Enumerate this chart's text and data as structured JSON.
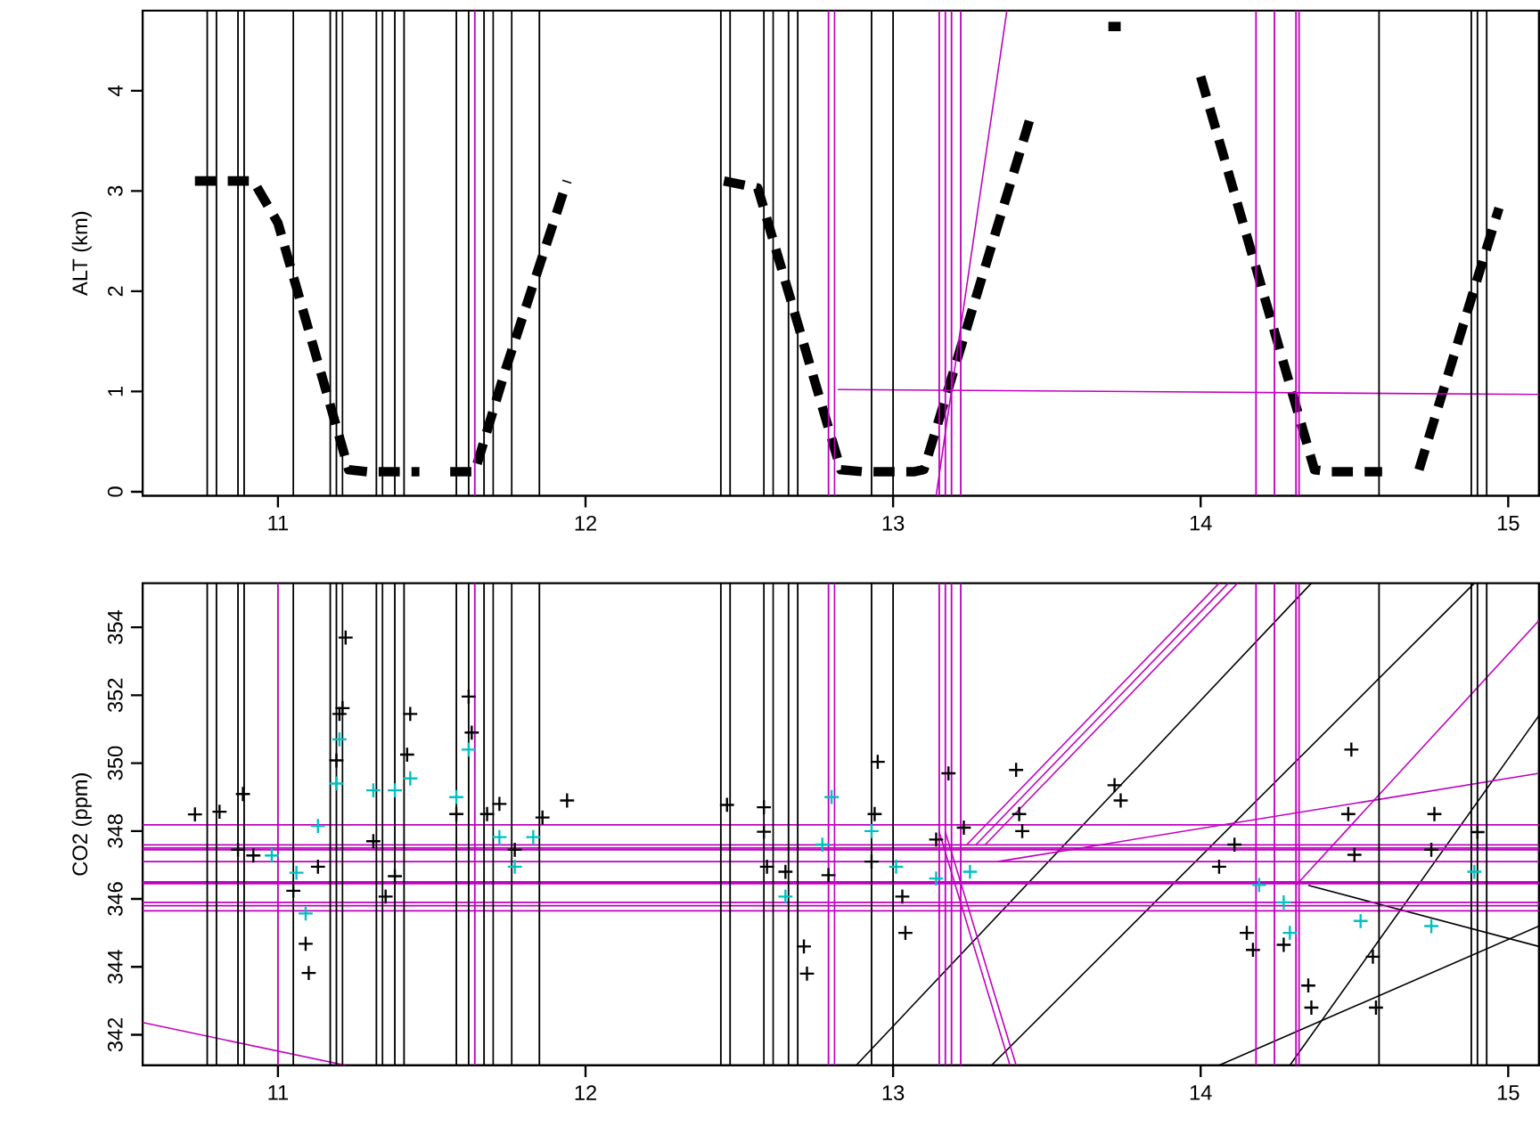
{
  "chart_data": [
    {
      "type": "line",
      "ylabel": "ALT (km)",
      "xlim": [
        10.56,
        15.1
      ],
      "ylim": [
        -0.04,
        4.8
      ],
      "xticks": [
        11,
        12,
        13,
        14,
        15
      ],
      "yticks": [
        0,
        1,
        2,
        3,
        4
      ],
      "series": [
        {
          "color": "#000000",
          "line_style": "dashed",
          "x": [
            10.73,
            10.92,
            11.0,
            11.23,
            11.29,
            11.46,
            11.5,
            11.56,
            11.64,
            11.74,
            11.94,
            12.2,
            12.45,
            12.56,
            12.83,
            12.9,
            13.07,
            13.1,
            13.45,
            13.6,
            13.7,
            13.74,
            13.85,
            14.0,
            14.37,
            14.42,
            14.59,
            14.65,
            14.71,
            14.97
          ],
          "values": [
            3.1,
            3.1,
            2.68,
            0.22,
            0.2,
            0.2,
            null,
            0.2,
            0.2,
            1.22,
            3.1,
            null,
            3.1,
            3.03,
            0.22,
            0.2,
            0.2,
            0.22,
            3.77,
            null,
            4.64,
            4.64,
            null,
            4.14,
            0.22,
            0.2,
            0.2,
            null,
            0.22,
            2.83
          ]
        },
        {
          "color": "#c000c0",
          "line_style": "solid",
          "x": [
            12.82,
            15.1
          ],
          "values": [
            1.02,
            0.97
          ]
        },
        {
          "color": "#c000c0",
          "line_style": "solid",
          "x": [
            13.14,
            13.37
          ],
          "values": [
            -0.04,
            4.8
          ]
        }
      ],
      "ref_lines": [
        {
          "axis": "x",
          "value": 10.77,
          "color": "#000000"
        },
        {
          "axis": "x",
          "value": 10.8,
          "color": "#000000"
        },
        {
          "axis": "x",
          "value": 10.87,
          "color": "#000000"
        },
        {
          "axis": "x",
          "value": 10.89,
          "color": "#000000"
        },
        {
          "axis": "x",
          "value": 11.05,
          "color": "#000000"
        },
        {
          "axis": "x",
          "value": 11.17,
          "color": "#000000"
        },
        {
          "axis": "x",
          "value": 11.19,
          "color": "#000000"
        },
        {
          "axis": "x",
          "value": 11.21,
          "color": "#000000"
        },
        {
          "axis": "x",
          "value": 11.32,
          "color": "#000000"
        },
        {
          "axis": "x",
          "value": 11.34,
          "color": "#000000"
        },
        {
          "axis": "x",
          "value": 11.38,
          "color": "#000000"
        },
        {
          "axis": "x",
          "value": 11.41,
          "color": "#000000"
        },
        {
          "axis": "x",
          "value": 11.58,
          "color": "#000000"
        },
        {
          "axis": "x",
          "value": 11.62,
          "color": "#000000"
        },
        {
          "axis": "x",
          "value": 11.67,
          "color": "#000000"
        },
        {
          "axis": "x",
          "value": 11.7,
          "color": "#000000"
        },
        {
          "axis": "x",
          "value": 11.76,
          "color": "#000000"
        },
        {
          "axis": "x",
          "value": 11.85,
          "color": "#000000"
        },
        {
          "axis": "x",
          "value": 12.44,
          "color": "#000000"
        },
        {
          "axis": "x",
          "value": 12.47,
          "color": "#000000"
        },
        {
          "axis": "x",
          "value": 12.58,
          "color": "#000000"
        },
        {
          "axis": "x",
          "value": 12.61,
          "color": "#000000"
        },
        {
          "axis": "x",
          "value": 12.66,
          "color": "#000000"
        },
        {
          "axis": "x",
          "value": 12.69,
          "color": "#000000"
        },
        {
          "axis": "x",
          "value": 12.93,
          "color": "#000000"
        },
        {
          "axis": "x",
          "value": 13.0,
          "color": "#000000"
        },
        {
          "axis": "x",
          "value": 14.58,
          "color": "#000000"
        },
        {
          "axis": "x",
          "value": 14.88,
          "color": "#000000"
        },
        {
          "axis": "x",
          "value": 14.9,
          "color": "#000000"
        },
        {
          "axis": "x",
          "value": 14.93,
          "color": "#000000"
        },
        {
          "axis": "x",
          "value": 11.64,
          "color": "#c000c0"
        },
        {
          "axis": "x",
          "value": 12.79,
          "color": "#c000c0"
        },
        {
          "axis": "x",
          "value": 12.81,
          "color": "#c000c0"
        },
        {
          "axis": "x",
          "value": 13.15,
          "color": "#c000c0"
        },
        {
          "axis": "x",
          "value": 13.17,
          "color": "#c000c0"
        },
        {
          "axis": "x",
          "value": 13.19,
          "color": "#c000c0"
        },
        {
          "axis": "x",
          "value": 13.22,
          "color": "#c000c0"
        },
        {
          "axis": "x",
          "value": 14.18,
          "color": "#c000c0"
        },
        {
          "axis": "x",
          "value": 14.24,
          "color": "#c000c0"
        },
        {
          "axis": "x",
          "value": 14.31,
          "color": "#c000c0"
        },
        {
          "axis": "x",
          "value": 14.32,
          "color": "#c000c0"
        }
      ]
    },
    {
      "type": "scatter",
      "ylabel": "CO2 (ppm)",
      "xlim": [
        10.56,
        15.1
      ],
      "ylim": [
        341.1,
        355.3
      ],
      "xticks": [
        11,
        12,
        13,
        14,
        15
      ],
      "yticks": [
        342,
        344,
        346,
        348,
        350,
        352,
        354
      ],
      "series": [
        {
          "color": "#000000",
          "marker": "cross",
          "x": [
            10.73,
            10.81,
            10.886,
            10.87,
            10.92,
            11.05,
            11.09,
            11.1,
            11.13,
            11.19,
            11.21,
            11.22,
            11.2,
            11.31,
            11.35,
            11.38,
            11.43,
            11.42,
            11.58,
            11.62,
            11.63,
            11.68,
            11.72,
            11.77,
            11.86,
            11.94,
            12.46,
            12.58,
            12.59,
            12.58,
            12.65,
            12.71,
            12.72,
            12.79,
            12.95,
            12.94,
            12.93,
            13.03,
            13.04,
            13.18,
            13.14,
            13.23,
            13.4,
            13.41,
            13.42,
            13.72,
            13.74,
            14.06,
            14.11,
            14.15,
            14.17,
            14.27,
            14.35,
            14.36,
            14.49,
            14.48,
            14.5,
            14.56,
            14.57,
            14.76,
            14.75,
            14.9
          ],
          "values": [
            348.49,
            348.57,
            349.09,
            347.45,
            347.28,
            346.24,
            344.68,
            343.82,
            346.95,
            350.08,
            351.62,
            353.7,
            351.45,
            347.7,
            346.07,
            346.67,
            351.45,
            350.25,
            348.5,
            351.96,
            350.9,
            348.5,
            348.8,
            347.45,
            348.4,
            348.9,
            348.77,
            348.7,
            346.95,
            347.98,
            346.8,
            344.6,
            343.8,
            346.7,
            350.04,
            348.5,
            347.1,
            346.07,
            345.0,
            349.7,
            347.75,
            348.1,
            349.8,
            348.5,
            348.0,
            349.35,
            348.9,
            346.95,
            347.6,
            345.0,
            344.5,
            344.65,
            343.45,
            342.8,
            350.4,
            348.5,
            347.3,
            344.3,
            342.8,
            348.5,
            347.45,
            347.97
          ]
        },
        {
          "color": "#00c0c0",
          "marker": "cross",
          "x": [
            10.98,
            11.06,
            11.09,
            11.13,
            11.19,
            11.2,
            11.31,
            11.38,
            11.43,
            11.58,
            11.62,
            11.72,
            11.77,
            11.83,
            12.65,
            12.8,
            12.77,
            12.93,
            13.01,
            13.14,
            13.25,
            14.19,
            14.27,
            14.29,
            14.52,
            14.75,
            14.89
          ],
          "values": [
            347.28,
            346.77,
            345.57,
            348.15,
            349.4,
            350.7,
            349.2,
            349.2,
            349.55,
            349.0,
            350.4,
            347.82,
            346.95,
            347.82,
            346.07,
            349.0,
            347.6,
            348.0,
            346.95,
            346.6,
            346.8,
            346.41,
            345.9,
            345.0,
            345.35,
            345.2,
            346.8
          ]
        },
        {
          "type": "line",
          "color": "#000000",
          "line_style": "solid",
          "x": [
            12.88,
            14.36
          ],
          "values": [
            341.1,
            355.3
          ]
        },
        {
          "type": "line",
          "color": "#000000",
          "line_style": "solid",
          "x": [
            13.32,
            14.89
          ],
          "values": [
            341.1,
            355.3
          ]
        },
        {
          "type": "line",
          "color": "#000000",
          "line_style": "solid",
          "x": [
            14.06,
            15.1
          ],
          "values": [
            341.1,
            345.2
          ]
        },
        {
          "type": "line",
          "color": "#000000",
          "line_style": "solid",
          "x": [
            14.29,
            15.1
          ],
          "values": [
            341.1,
            351.4
          ]
        },
        {
          "type": "line",
          "color": "#000000",
          "line_style": "solid",
          "x": [
            14.35,
            15.1
          ],
          "values": [
            346.4,
            344.6
          ]
        },
        {
          "type": "line",
          "color": "#c000c0",
          "line_style": "solid",
          "x": [
            13.24,
            14.06
          ],
          "values": [
            347.6,
            355.3
          ]
        },
        {
          "type": "line",
          "color": "#c000c0",
          "line_style": "solid",
          "x": [
            13.27,
            14.09
          ],
          "values": [
            347.6,
            355.3
          ]
        },
        {
          "type": "line",
          "color": "#c000c0",
          "line_style": "solid",
          "x": [
            13.3,
            14.12
          ],
          "values": [
            347.6,
            355.3
          ]
        },
        {
          "type": "line",
          "color": "#c000c0",
          "line_style": "solid",
          "x": [
            13.15,
            13.38
          ],
          "values": [
            347.97,
            341.1
          ]
        },
        {
          "type": "line",
          "color": "#c000c0",
          "line_style": "solid",
          "x": [
            13.17,
            13.4
          ],
          "values": [
            347.97,
            341.1
          ]
        },
        {
          "type": "line",
          "color": "#c000c0",
          "line_style": "solid",
          "x": [
            13.34,
            15.1
          ],
          "values": [
            347.1,
            349.7
          ]
        },
        {
          "type": "line",
          "color": "#c000c0",
          "line_style": "solid",
          "x": [
            14.31,
            15.1
          ],
          "values": [
            346.4,
            354.2
          ]
        },
        {
          "type": "line",
          "color": "#c000c0",
          "line_style": "solid",
          "x": [
            10.56,
            11.22
          ],
          "values": [
            342.36,
            341.1
          ]
        }
      ],
      "ref_lines": [
        {
          "axis": "y",
          "value": 348.18,
          "color": "#c000c0"
        },
        {
          "axis": "y",
          "value": 347.59,
          "color": "#c000c0"
        },
        {
          "axis": "y",
          "value": 347.5,
          "color": "#c000c0"
        },
        {
          "axis": "y",
          "value": 347.45,
          "color": "#c000c0"
        },
        {
          "axis": "y",
          "value": 347.1,
          "color": "#c000c0"
        },
        {
          "axis": "y",
          "value": 346.5,
          "color": "#c000c0"
        },
        {
          "axis": "y",
          "value": 346.45,
          "color": "#c000c0"
        },
        {
          "axis": "y",
          "value": 345.9,
          "color": "#c000c0"
        },
        {
          "axis": "y",
          "value": 345.8,
          "color": "#c000c0"
        },
        {
          "axis": "y",
          "value": 345.65,
          "color": "#c000c0"
        },
        {
          "axis": "x",
          "value": 10.77,
          "color": "#000000"
        },
        {
          "axis": "x",
          "value": 10.8,
          "color": "#000000"
        },
        {
          "axis": "x",
          "value": 10.87,
          "color": "#000000"
        },
        {
          "axis": "x",
          "value": 10.89,
          "color": "#000000"
        },
        {
          "axis": "x",
          "value": 11.05,
          "color": "#000000"
        },
        {
          "axis": "x",
          "value": 11.17,
          "color": "#000000"
        },
        {
          "axis": "x",
          "value": 11.19,
          "color": "#000000"
        },
        {
          "axis": "x",
          "value": 11.21,
          "color": "#000000"
        },
        {
          "axis": "x",
          "value": 11.32,
          "color": "#000000"
        },
        {
          "axis": "x",
          "value": 11.34,
          "color": "#000000"
        },
        {
          "axis": "x",
          "value": 11.38,
          "color": "#000000"
        },
        {
          "axis": "x",
          "value": 11.41,
          "color": "#000000"
        },
        {
          "axis": "x",
          "value": 11.58,
          "color": "#000000"
        },
        {
          "axis": "x",
          "value": 11.62,
          "color": "#000000"
        },
        {
          "axis": "x",
          "value": 11.67,
          "color": "#000000"
        },
        {
          "axis": "x",
          "value": 11.7,
          "color": "#000000"
        },
        {
          "axis": "x",
          "value": 11.76,
          "color": "#000000"
        },
        {
          "axis": "x",
          "value": 11.85,
          "color": "#000000"
        },
        {
          "axis": "x",
          "value": 12.44,
          "color": "#000000"
        },
        {
          "axis": "x",
          "value": 12.47,
          "color": "#000000"
        },
        {
          "axis": "x",
          "value": 12.58,
          "color": "#000000"
        },
        {
          "axis": "x",
          "value": 12.61,
          "color": "#000000"
        },
        {
          "axis": "x",
          "value": 12.66,
          "color": "#000000"
        },
        {
          "axis": "x",
          "value": 12.69,
          "color": "#000000"
        },
        {
          "axis": "x",
          "value": 12.93,
          "color": "#000000"
        },
        {
          "axis": "x",
          "value": 13.0,
          "color": "#000000"
        },
        {
          "axis": "x",
          "value": 14.58,
          "color": "#000000"
        },
        {
          "axis": "x",
          "value": 14.88,
          "color": "#000000"
        },
        {
          "axis": "x",
          "value": 14.9,
          "color": "#000000"
        },
        {
          "axis": "x",
          "value": 14.93,
          "color": "#000000"
        },
        {
          "axis": "x",
          "value": 11.0,
          "color": "#c000c0"
        },
        {
          "axis": "x",
          "value": 11.64,
          "color": "#c000c0"
        },
        {
          "axis": "x",
          "value": 12.79,
          "color": "#c000c0"
        },
        {
          "axis": "x",
          "value": 12.81,
          "color": "#c000c0"
        },
        {
          "axis": "x",
          "value": 13.15,
          "color": "#c000c0"
        },
        {
          "axis": "x",
          "value": 13.17,
          "color": "#c000c0"
        },
        {
          "axis": "x",
          "value": 13.19,
          "color": "#c000c0"
        },
        {
          "axis": "x",
          "value": 13.22,
          "color": "#c000c0"
        },
        {
          "axis": "x",
          "value": 14.18,
          "color": "#c000c0"
        },
        {
          "axis": "x",
          "value": 14.24,
          "color": "#c000c0"
        },
        {
          "axis": "x",
          "value": 14.31,
          "color": "#c000c0"
        },
        {
          "axis": "x",
          "value": 14.32,
          "color": "#c000c0"
        }
      ]
    }
  ]
}
